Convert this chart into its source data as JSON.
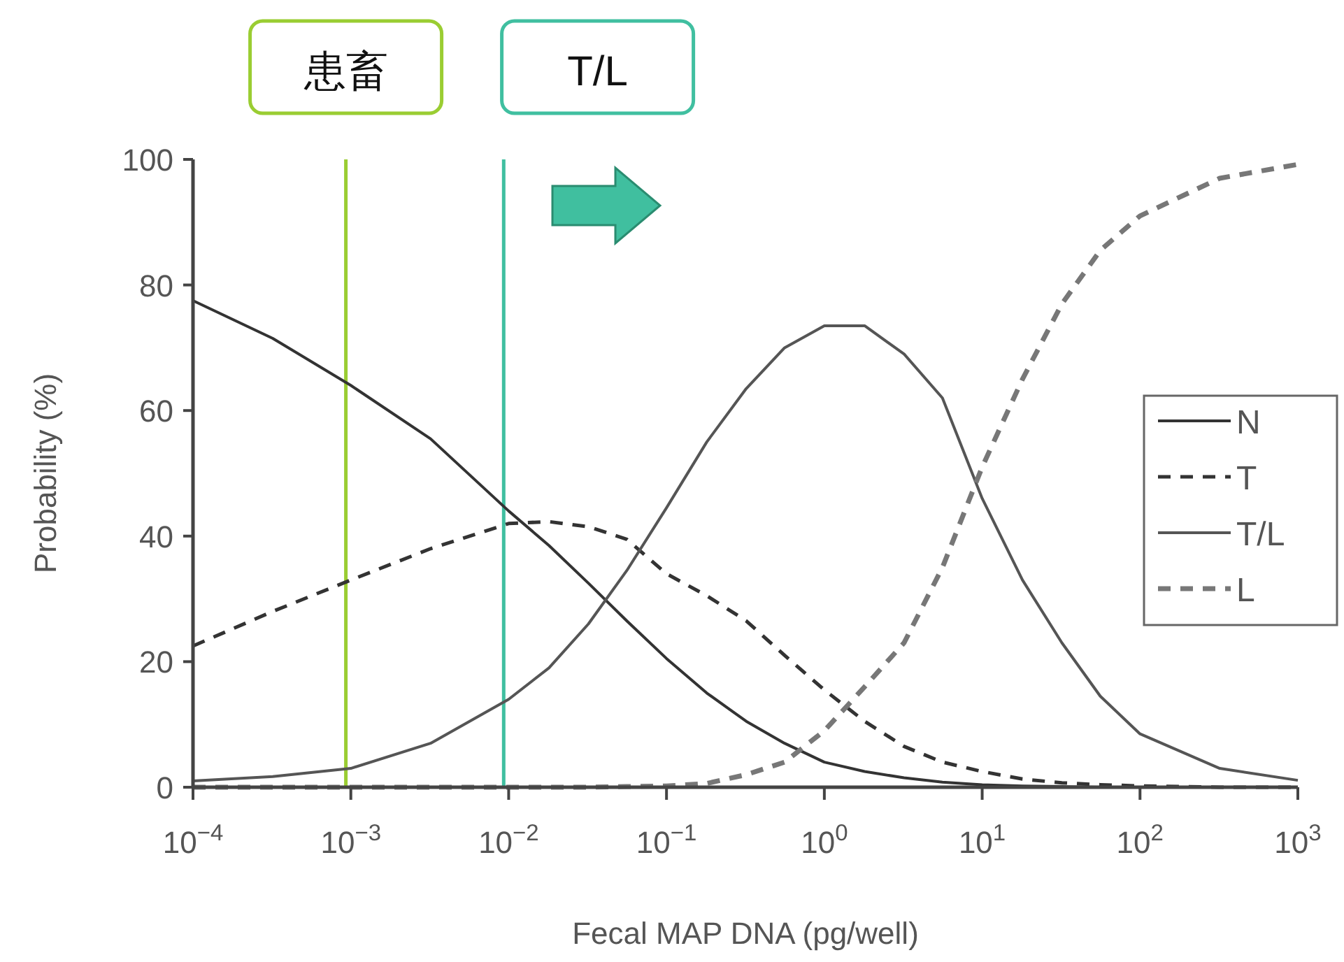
{
  "chart_data": {
    "type": "line",
    "xlabel": "Fecal MAP DNA (pg/well)",
    "ylabel": "Probability (%)",
    "log": "x",
    "xlim": [
      0.0001,
      1000
    ],
    "ylim": [
      0,
      100
    ],
    "xticks": [
      {
        "value": 0.0001,
        "label": "10$^{−4}$"
      },
      {
        "value": 0.001,
        "label": "10$^{−3}$"
      },
      {
        "value": 0.01,
        "label": "10$^{−2}$"
      },
      {
        "value": 0.1,
        "label": "10$^{−1}$"
      },
      {
        "value": 1,
        "label": "10$^{0}$"
      },
      {
        "value": 10,
        "label": "10$^{1}$"
      },
      {
        "value": 100,
        "label": "10$^{2}$"
      },
      {
        "value": 1000,
        "label": "10$^{3}$"
      }
    ],
    "yticks": [
      0,
      20,
      40,
      60,
      80,
      100
    ],
    "grid": false,
    "legend": "right",
    "marker": "none",
    "ref_lines": [
      {
        "axis": "x",
        "value": 0.00093,
        "label": "患畜",
        "color": "#9acd32"
      },
      {
        "axis": "x",
        "value": 0.0093,
        "label": "T/L",
        "color": "#40bfa0"
      }
    ],
    "series": [
      {
        "name": "N",
        "color": "#333333",
        "line_style": "solid",
        "x": [
          0.0001,
          0.00032,
          0.001,
          0.0032,
          0.01,
          0.018,
          0.032,
          0.056,
          0.1,
          0.18,
          0.32,
          0.56,
          1,
          1.8,
          3.2,
          5.6,
          10,
          18,
          32,
          56,
          100,
          320,
          1000
        ],
        "values": [
          77.5,
          71.5,
          64,
          55.5,
          44,
          38.5,
          32.5,
          26.5,
          20.5,
          15,
          10.5,
          7,
          4,
          2.5,
          1.5,
          0.8,
          0.4,
          0.2,
          0.1,
          0,
          0,
          0,
          0
        ]
      },
      {
        "name": "T",
        "color": "#333333",
        "line_style": "dashed",
        "x": [
          0.0001,
          0.00032,
          0.001,
          0.0032,
          0.01,
          0.018,
          0.032,
          0.056,
          0.1,
          0.18,
          0.32,
          0.56,
          1,
          1.8,
          3.2,
          5.6,
          10,
          18,
          32,
          56,
          100,
          320,
          1000
        ],
        "values": [
          22.5,
          28,
          33,
          38,
          42,
          42.3,
          41.5,
          39.5,
          34,
          30.5,
          26.5,
          21,
          15.5,
          10.5,
          6.5,
          4,
          2.5,
          1.3,
          0.7,
          0.4,
          0.2,
          0,
          0
        ]
      },
      {
        "name": "T/L",
        "color": "#555555",
        "line_style": "solid",
        "x": [
          0.0001,
          0.00032,
          0.001,
          0.0032,
          0.01,
          0.018,
          0.032,
          0.056,
          0.1,
          0.18,
          0.32,
          0.56,
          1,
          1.8,
          3.2,
          5.6,
          10,
          18,
          32,
          56,
          100,
          320,
          1000
        ],
        "values": [
          1,
          1.7,
          3,
          7,
          14,
          19,
          26,
          34.5,
          44.5,
          55,
          63.5,
          70,
          73.5,
          73.5,
          69,
          62,
          46,
          33,
          23,
          14.5,
          8.5,
          3,
          1.1
        ]
      },
      {
        "name": "L",
        "color": "#777777",
        "line_style": "dashed",
        "x": [
          0.0001,
          0.00032,
          0.001,
          0.0032,
          0.01,
          0.018,
          0.032,
          0.056,
          0.1,
          0.18,
          0.32,
          0.56,
          1,
          1.8,
          3.2,
          5.6,
          10,
          18,
          32,
          56,
          100,
          320,
          1000
        ],
        "values": [
          0,
          0,
          0,
          0,
          0,
          0,
          0,
          0.1,
          0.2,
          0.6,
          2,
          4,
          9,
          16,
          23,
          35,
          51,
          65,
          77,
          85.5,
          91,
          97,
          99.2
        ]
      }
    ]
  }
}
